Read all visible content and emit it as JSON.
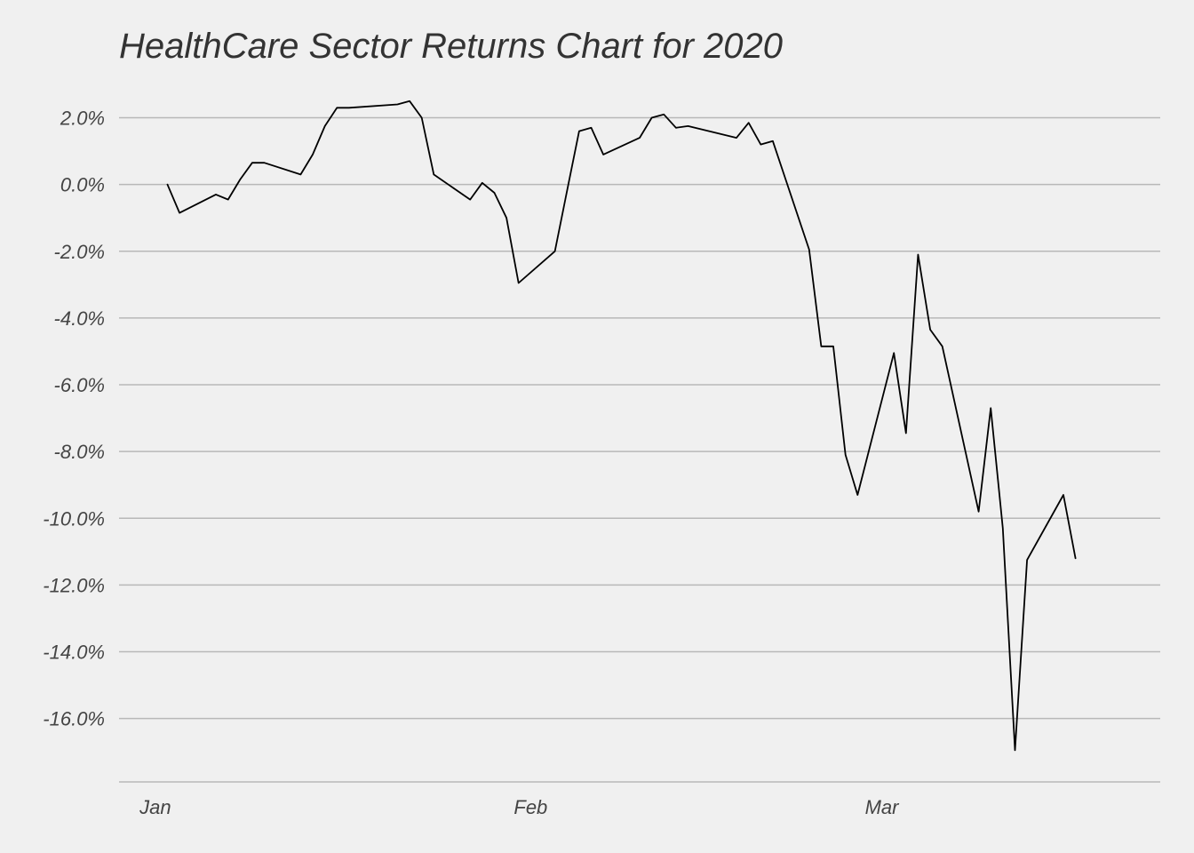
{
  "chart_data": {
    "type": "line",
    "title": "HealthCare Sector Returns Chart for 2020",
    "xlabel": "",
    "ylabel": "",
    "x_tick_labels": [
      {
        "label": "Jan",
        "date": "2020-01-01"
      },
      {
        "label": "Feb",
        "date": "2020-02-01"
      },
      {
        "label": "Mar",
        "date": "2020-03-01"
      }
    ],
    "y_ticks": [
      2,
      0,
      -2,
      -4,
      -6,
      -8,
      -10,
      -12,
      -14,
      -16
    ],
    "y_tick_labels": [
      "2.0%",
      "0.0%",
      "-2.0%",
      "-4.0%",
      "-6.0%",
      "-8.0%",
      "-10.0%",
      "-12.0%",
      "-14.0%",
      "-16.0%"
    ],
    "ylim": [
      -17.9,
      2.6
    ],
    "xlim": [
      "2019-12-29",
      "2020-03-24"
    ],
    "grid": "horizontal",
    "colors": {
      "background": "#f0f0f0",
      "line": "#000000",
      "grid": "#b8b8b8",
      "text": "#444444"
    },
    "series": [
      {
        "x": [
          "2020-01-02",
          "2020-01-03",
          "2020-01-06",
          "2020-01-07",
          "2020-01-08",
          "2020-01-09",
          "2020-01-10",
          "2020-01-13",
          "2020-01-14",
          "2020-01-15",
          "2020-01-16",
          "2020-01-17",
          "2020-01-21",
          "2020-01-22",
          "2020-01-23",
          "2020-01-24",
          "2020-01-27",
          "2020-01-28",
          "2020-01-29",
          "2020-01-30",
          "2020-01-31",
          "2020-02-03",
          "2020-02-04",
          "2020-02-05",
          "2020-02-06",
          "2020-02-07",
          "2020-02-10",
          "2020-02-11",
          "2020-02-12",
          "2020-02-13",
          "2020-02-14",
          "2020-02-18",
          "2020-02-19",
          "2020-02-20",
          "2020-02-21",
          "2020-02-24",
          "2020-02-25",
          "2020-02-26",
          "2020-02-27",
          "2020-02-28",
          "2020-03-02",
          "2020-03-03",
          "2020-03-04",
          "2020-03-05",
          "2020-03-06",
          "2020-03-09",
          "2020-03-10",
          "2020-03-11",
          "2020-03-12",
          "2020-03-13",
          "2020-03-16",
          "2020-03-17"
        ],
        "values": [
          0.0,
          -0.85,
          -0.3,
          -0.45,
          0.15,
          0.65,
          0.65,
          0.3,
          0.9,
          1.75,
          2.3,
          2.3,
          2.4,
          2.5,
          2.0,
          0.3,
          -0.45,
          0.05,
          -0.25,
          -1.0,
          -2.95,
          -2.0,
          -0.2,
          1.6,
          1.7,
          0.9,
          1.4,
          2.0,
          2.1,
          1.7,
          1.75,
          1.4,
          1.85,
          1.2,
          1.3,
          -1.95,
          -4.85,
          -4.85,
          -8.1,
          -9.3,
          -5.05,
          -7.45,
          -2.1,
          -4.35,
          -4.85,
          -9.8,
          -6.7,
          -10.3,
          -16.95,
          -11.25,
          -9.3,
          -11.2
        ]
      }
    ]
  }
}
